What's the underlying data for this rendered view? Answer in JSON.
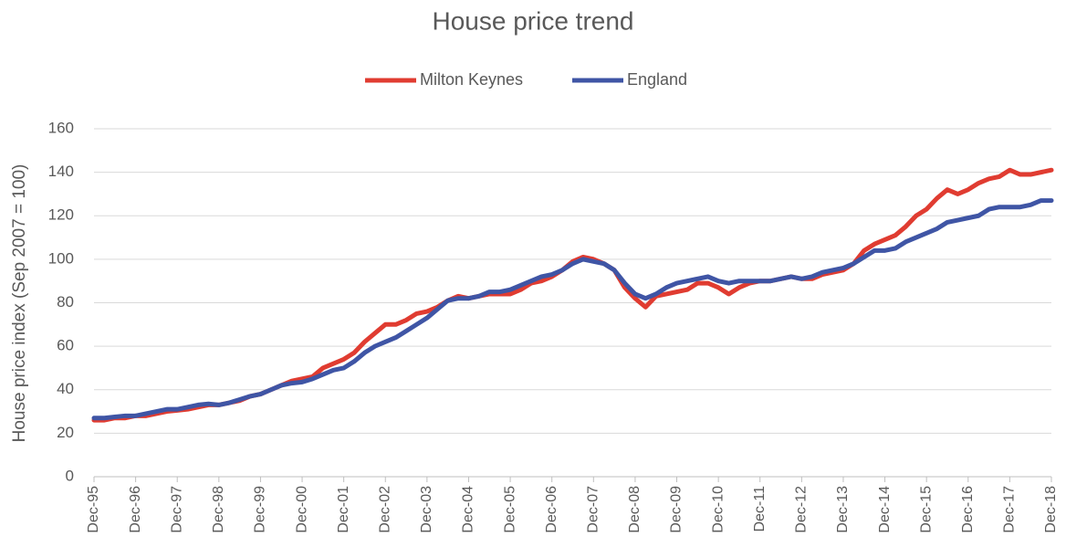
{
  "chart_data": {
    "type": "line",
    "title": "House price trend",
    "y_label": "House price index (Sep 2007 = 100)",
    "categories": [
      "Dec-95",
      null,
      null,
      null,
      "Dec-96",
      null,
      null,
      null,
      "Dec-97",
      null,
      null,
      null,
      "Dec-98",
      null,
      null,
      null,
      "Dec-99",
      null,
      null,
      null,
      "Dec-00",
      null,
      null,
      null,
      "Dec-01",
      null,
      null,
      null,
      "Dec-02",
      null,
      null,
      null,
      "Dec-03",
      null,
      null,
      null,
      "Dec-04",
      null,
      null,
      null,
      "Dec-05",
      null,
      null,
      null,
      "Dec-06",
      null,
      null,
      null,
      "Dec-07",
      null,
      null,
      null,
      "Dec-08",
      null,
      null,
      null,
      "Dec-09",
      null,
      null,
      null,
      "Dec-10",
      null,
      null,
      null,
      "Dec-11",
      null,
      null,
      null,
      "Dec-12",
      null,
      null,
      null,
      "Dec-13",
      null,
      null,
      null,
      "Dec-14",
      null,
      null,
      null,
      "Dec-15",
      null,
      null,
      null,
      "Dec-16",
      null,
      null,
      null,
      "Dec-17",
      null,
      null,
      null,
      "Dec-18"
    ],
    "series": [
      {
        "name": "Milton Keynes",
        "color": "#e03c31",
        "values": [
          26,
          26,
          27,
          27,
          28,
          28,
          29,
          30,
          30.5,
          31,
          32,
          33,
          33,
          34,
          35,
          37,
          38,
          40,
          42,
          44,
          45,
          46,
          50,
          52,
          54,
          57,
          62,
          66,
          70,
          70,
          72,
          75,
          76,
          78,
          81,
          83,
          82,
          83,
          84,
          84,
          84,
          86,
          89,
          90,
          92,
          95,
          99,
          101,
          100,
          98,
          95,
          87,
          82,
          78,
          83,
          84,
          85,
          86,
          89,
          89,
          87,
          84,
          87,
          89,
          90,
          90,
          91,
          92,
          91,
          91,
          93,
          94,
          95,
          98,
          104,
          107,
          109,
          111,
          115,
          120,
          123,
          128,
          132,
          130,
          132,
          135,
          137,
          138,
          141,
          139,
          139,
          140,
          141
        ]
      },
      {
        "name": "England",
        "color": "#3f55a5",
        "values": [
          27,
          27,
          27.5,
          28,
          28,
          29,
          30,
          31,
          31,
          32,
          33,
          33.5,
          33,
          34,
          35.5,
          37,
          38,
          40,
          42,
          43,
          43.5,
          45,
          47,
          49,
          50,
          53,
          57,
          60,
          62,
          64,
          67,
          70,
          73,
          77,
          81,
          82,
          82,
          83,
          85,
          85,
          86,
          88,
          90,
          92,
          93,
          95,
          98,
          100,
          99,
          98,
          95,
          89,
          84,
          82,
          84,
          87,
          89,
          90,
          91,
          92,
          90,
          89,
          90,
          90,
          90,
          90,
          91,
          92,
          91,
          92,
          94,
          95,
          96,
          98,
          101,
          104,
          104,
          105,
          108,
          110,
          112,
          114,
          117,
          118,
          119,
          120,
          123,
          124,
          124,
          124,
          125,
          127,
          127
        ]
      }
    ],
    "ylim": [
      0,
      160
    ],
    "yticks": [
      0,
      20,
      40,
      60,
      80,
      100,
      120,
      140,
      160
    ],
    "grid": true,
    "legend": "top"
  }
}
